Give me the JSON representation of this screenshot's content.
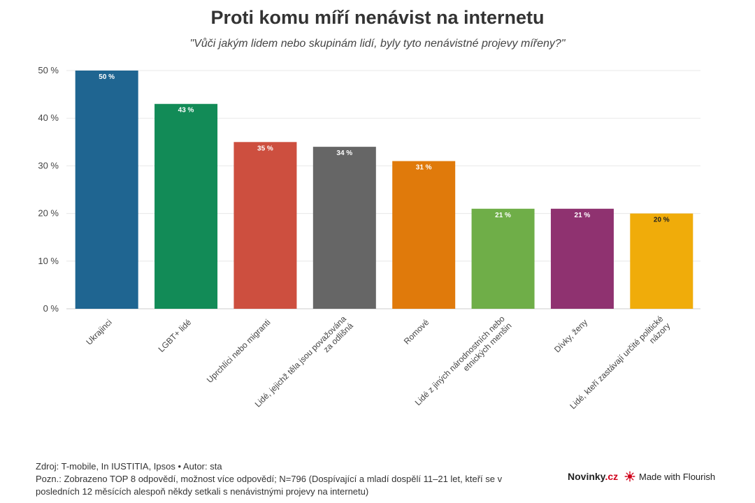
{
  "chart_data": {
    "type": "bar",
    "title": "Proti komu míří nenávist na internetu",
    "subtitle": "\"Vůči jakým lidem nebo skupinám lidí, byly tyto nenávistné projevy mířeny?\"",
    "categories": [
      "Ukrajinci",
      "LGBT+ lidé",
      "Uprchlíci nebo migranti",
      "Lidé, jejichž těla jsou považována za odlišná",
      "Romové",
      "Lidé z jiných národnostních nebo etnických menšin",
      "Dívky, ženy",
      "Lidé, kteří zastávají určité politické názory"
    ],
    "category_lines": [
      [
        "Ukrajinci"
      ],
      [
        "LGBT+ lidé"
      ],
      [
        "Uprchlíci nebo migranti"
      ],
      [
        "Lidé, jejichž těla jsou považována",
        "za odlišná"
      ],
      [
        "Romové"
      ],
      [
        "Lidé z jiných národnostních nebo",
        "etnických menšin"
      ],
      [
        "Dívky, ženy"
      ],
      [
        "Lidé, kteří zastávají určité politické",
        "názory"
      ]
    ],
    "values": [
      50,
      43,
      35,
      34,
      31,
      21,
      21,
      20
    ],
    "value_labels": [
      "50 %",
      "43 %",
      "35 %",
      "34 %",
      "31 %",
      "21 %",
      "21 %",
      "20 %"
    ],
    "colors": [
      "#1f6591",
      "#128b57",
      "#cd4f3f",
      "#666666",
      "#e07a0b",
      "#6fae48",
      "#8f3270",
      "#f0ac0a"
    ],
    "label_colors": [
      "#ffffff",
      "#ffffff",
      "#ffffff",
      "#ffffff",
      "#ffffff",
      "#ffffff",
      "#ffffff",
      "#222222"
    ],
    "yticks": [
      0,
      10,
      20,
      30,
      40,
      50
    ],
    "ytick_labels": [
      "0 %",
      "10 %",
      "20 %",
      "30 %",
      "40 %",
      "50 %"
    ],
    "ylim": [
      0,
      50
    ],
    "grid": true,
    "legend": "none"
  },
  "footer": {
    "source": "Zdroj: T-mobile, In IUSTITIA, Ipsos • Autor: sta",
    "note_line1": "Pozn.: Zobrazeno TOP 8 odpovědí, možnost více odpovědí; N=796 (Dospívající a mladí dospělí 11–21 let, kteří se v",
    "note_line2": "posledních 12 měsících alespoň někdy setkali s nenávistnými projevy na internetu)"
  },
  "branding": {
    "novinky_part1": "Novinky",
    "novinky_part2": ".cz",
    "flourish": "Made with Flourish",
    "flourish_icon": "flourish-sunburst-icon",
    "novinky_accent": "#d0021b"
  }
}
